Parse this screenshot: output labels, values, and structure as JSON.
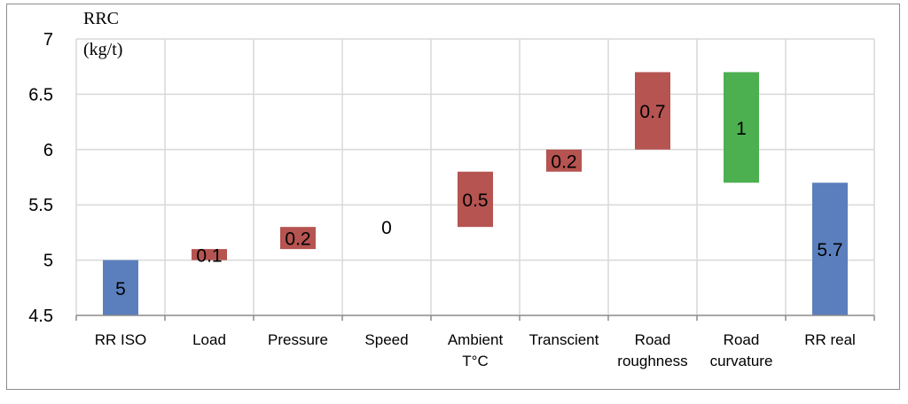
{
  "chart_data": {
    "type": "waterfall",
    "ylabel": [
      "RRC",
      "(kg/t)"
    ],
    "ylim": [
      4.5,
      7
    ],
    "yticks": [
      4.5,
      5,
      5.5,
      6,
      6.5,
      7
    ],
    "ytick_labels": [
      "4.5",
      "5",
      "5.5",
      "6",
      "6.5",
      "7"
    ],
    "grid": true,
    "categories": [
      [
        "RR ISO"
      ],
      [
        "Load"
      ],
      [
        "Pressure"
      ],
      [
        "Speed"
      ],
      [
        "Ambient",
        "T°C"
      ],
      [
        "Transcient"
      ],
      [
        "Road",
        "roughness"
      ],
      [
        "Road",
        "curvature"
      ],
      [
        "RR real"
      ]
    ],
    "bars": [
      {
        "low": 4.5,
        "high": 5.0,
        "label": "5",
        "kind": "total"
      },
      {
        "low": 5.0,
        "high": 5.1,
        "label": "0.1",
        "kind": "increase"
      },
      {
        "low": 5.1,
        "high": 5.3,
        "label": "0.2",
        "kind": "increase"
      },
      {
        "low": 5.3,
        "high": 5.3,
        "label": "0",
        "kind": "increase"
      },
      {
        "low": 5.3,
        "high": 5.8,
        "label": "0.5",
        "kind": "increase"
      },
      {
        "low": 5.8,
        "high": 6.0,
        "label": "0.2",
        "kind": "increase"
      },
      {
        "low": 6.0,
        "high": 6.7,
        "label": "0.7",
        "kind": "increase"
      },
      {
        "low": 5.7,
        "high": 6.7,
        "label": "1",
        "kind": "decrease"
      },
      {
        "low": 4.5,
        "high": 5.7,
        "label": "5.7",
        "kind": "total"
      }
    ],
    "colors": {
      "total": "#5b7fbd",
      "increase": "#b55451",
      "decrease": "#4caf50",
      "grid": "#d9d9d9",
      "axis": "#8c8c8c"
    }
  }
}
